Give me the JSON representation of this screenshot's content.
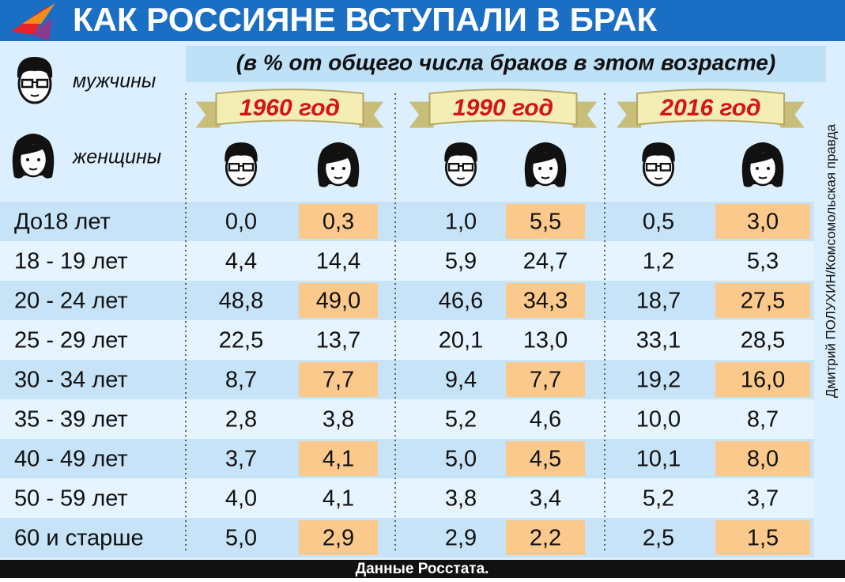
{
  "header": {
    "title": "КАК РОССИЯНЕ ВСТУПАЛИ В БРАК",
    "subtitle": "(в % от общего числа браков в этом возрасте)"
  },
  "legend": {
    "men": "мужчины",
    "women": "женщины"
  },
  "table": {
    "years": [
      "1960 год",
      "1990 год",
      "2016 год"
    ],
    "rows": [
      [
        "До18 лет",
        "0,0",
        "0,3",
        "1,0",
        "5,5",
        "0,5",
        "3,0"
      ],
      [
        "18 - 19 лет",
        "4,4",
        "14,4",
        "5,9",
        "24,7",
        "1,2",
        "5,3"
      ],
      [
        "20 - 24 лет",
        "48,8",
        "49,0",
        "46,6",
        "34,3",
        "18,7",
        "27,5"
      ],
      [
        "25 - 29 лет",
        "22,5",
        "13,7",
        "20,1",
        "13,0",
        "33,1",
        "28,5"
      ],
      [
        "30 - 34 лет",
        "8,7",
        "7,7",
        "9,4",
        "7,7",
        "19,2",
        "16,0"
      ],
      [
        "35 - 39 лет",
        "2,8",
        "3,8",
        "5,2",
        "4,6",
        "10,0",
        "8,7"
      ],
      [
        "40 - 49 лет",
        "3,7",
        "4,1",
        "5,0",
        "4,5",
        "10,1",
        "8,0"
      ],
      [
        "50 - 59 лет",
        "4,0",
        "4,1",
        "3,8",
        "3,4",
        "5,2",
        "3,7"
      ],
      [
        "60 и старше",
        "5,0",
        "2,9",
        "2,9",
        "2,2",
        "2,5",
        "1,5"
      ]
    ]
  },
  "credit": "Дмитрий ПОЛУХИН/Комсомольская правда",
  "footer": {
    "source": "Данные Росстата."
  }
}
